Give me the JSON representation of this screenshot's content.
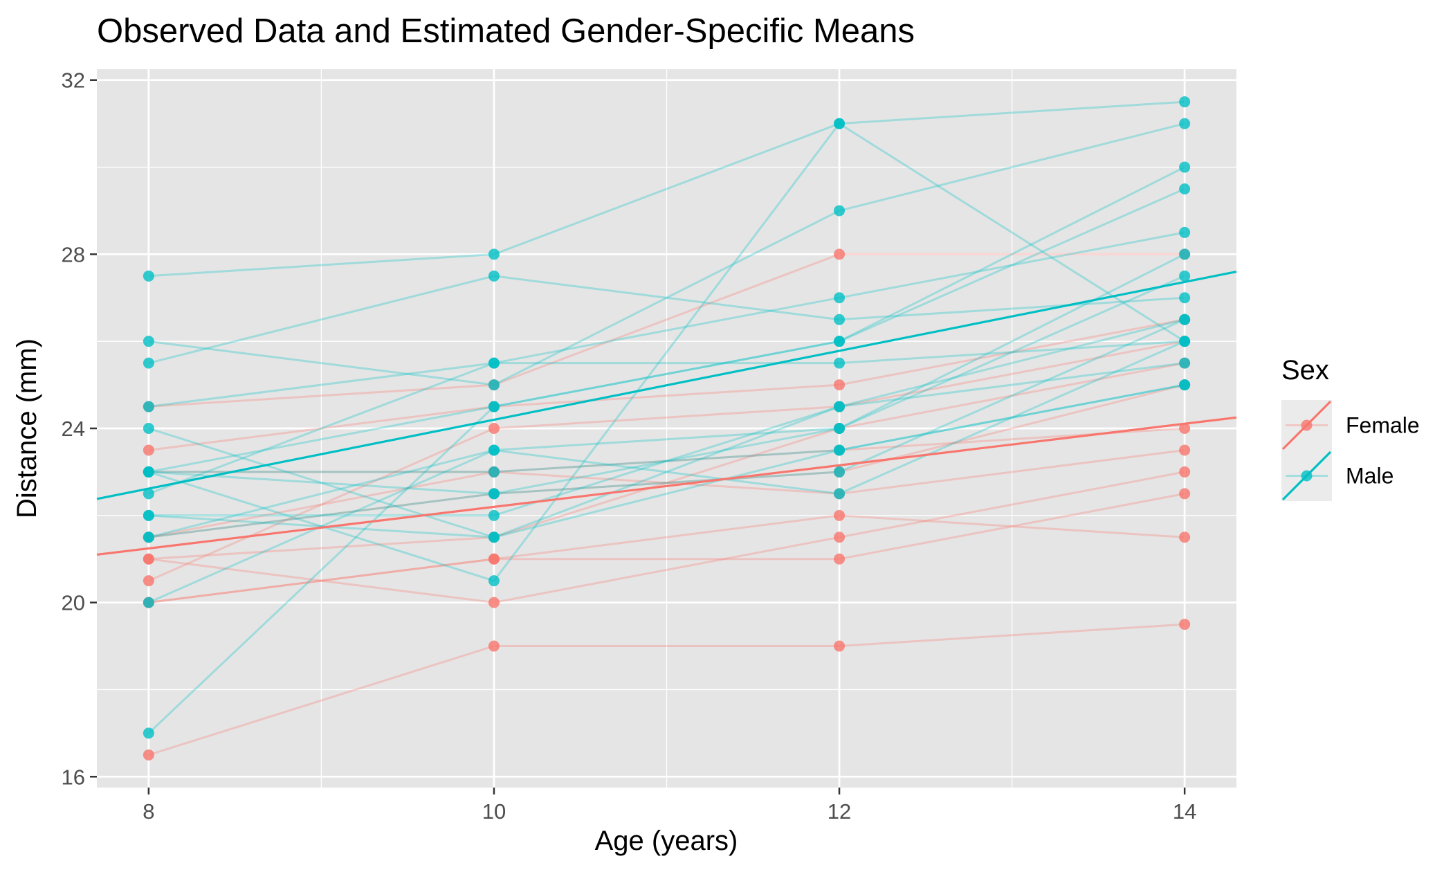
{
  "chart_data": {
    "type": "line",
    "title": "Observed Data and Estimated Gender-Specific Means",
    "xlabel": "Age (years)",
    "ylabel": "Distance (mm)",
    "x_ticks": [
      8,
      10,
      12,
      14
    ],
    "x_tick_labels": [
      "8",
      "10",
      "12",
      "14"
    ],
    "y_ticks": [
      16,
      20,
      24,
      28,
      32
    ],
    "y_tick_labels": [
      "16",
      "20",
      "24",
      "28",
      "32"
    ],
    "xlim": [
      7.7,
      14.3
    ],
    "ylim": [
      15.75,
      32.25
    ],
    "grid": true,
    "panel_background": "#e5e5e5",
    "legend": {
      "title": "Sex",
      "position": "right",
      "entries": [
        {
          "label": "Female",
          "color": "#F8766D"
        },
        {
          "label": "Male",
          "color": "#00BFC4"
        }
      ]
    },
    "ages": [
      8,
      10,
      12,
      14
    ],
    "series": [
      {
        "group": "Female",
        "values": [
          21,
          20,
          21.5,
          23
        ]
      },
      {
        "group": "Female",
        "values": [
          21,
          21.5,
          24,
          25.5
        ]
      },
      {
        "group": "Female",
        "values": [
          20.5,
          24,
          24.5,
          26
        ]
      },
      {
        "group": "Female",
        "values": [
          23.5,
          24.5,
          25,
          26.5
        ]
      },
      {
        "group": "Female",
        "values": [
          21.5,
          23,
          22.5,
          23.5
        ]
      },
      {
        "group": "Female",
        "values": [
          20,
          21,
          21,
          22.5
        ]
      },
      {
        "group": "Female",
        "values": [
          21.5,
          22.5,
          23,
          25
        ]
      },
      {
        "group": "Female",
        "values": [
          23,
          23,
          23.5,
          24
        ]
      },
      {
        "group": "Female",
        "values": [
          20,
          21,
          22,
          21.5
        ]
      },
      {
        "group": "Female",
        "values": [
          16.5,
          19,
          19,
          19.5
        ]
      },
      {
        "group": "Female",
        "values": [
          24.5,
          25,
          28,
          28
        ]
      },
      {
        "group": "Male",
        "values": [
          26,
          25,
          29,
          31
        ]
      },
      {
        "group": "Male",
        "values": [
          21.5,
          22.5,
          23,
          26.5
        ]
      },
      {
        "group": "Male",
        "values": [
          23,
          22.5,
          24,
          27.5
        ]
      },
      {
        "group": "Male",
        "values": [
          25.5,
          27.5,
          26.5,
          27
        ]
      },
      {
        "group": "Male",
        "values": [
          20,
          23.5,
          22.5,
          26
        ]
      },
      {
        "group": "Male",
        "values": [
          24.5,
          25.5,
          27,
          28.5
        ]
      },
      {
        "group": "Male",
        "values": [
          22,
          22,
          24.5,
          26.5
        ]
      },
      {
        "group": "Male",
        "values": [
          24,
          21.5,
          24.5,
          25.5
        ]
      },
      {
        "group": "Male",
        "values": [
          23,
          20.5,
          31,
          26
        ]
      },
      {
        "group": "Male",
        "values": [
          27.5,
          28,
          31,
          31.5
        ]
      },
      {
        "group": "Male",
        "values": [
          23,
          23,
          23.5,
          25
        ]
      },
      {
        "group": "Male",
        "values": [
          21.5,
          23.5,
          24,
          28
        ]
      },
      {
        "group": "Male",
        "values": [
          17,
          24.5,
          26,
          29.5
        ]
      },
      {
        "group": "Male",
        "values": [
          22.5,
          25.5,
          25.5,
          26
        ]
      },
      {
        "group": "Male",
        "values": [
          23,
          24.5,
          26,
          30
        ]
      },
      {
        "group": "Male",
        "values": [
          22,
          21.5,
          23.5,
          25
        ]
      }
    ],
    "mean_lines": [
      {
        "group": "Female",
        "x": [
          7.7,
          14.3
        ],
        "y": [
          21.1,
          24.25
        ]
      },
      {
        "group": "Male",
        "x": [
          7.7,
          14.3
        ],
        "y": [
          22.38,
          27.6
        ]
      }
    ]
  }
}
